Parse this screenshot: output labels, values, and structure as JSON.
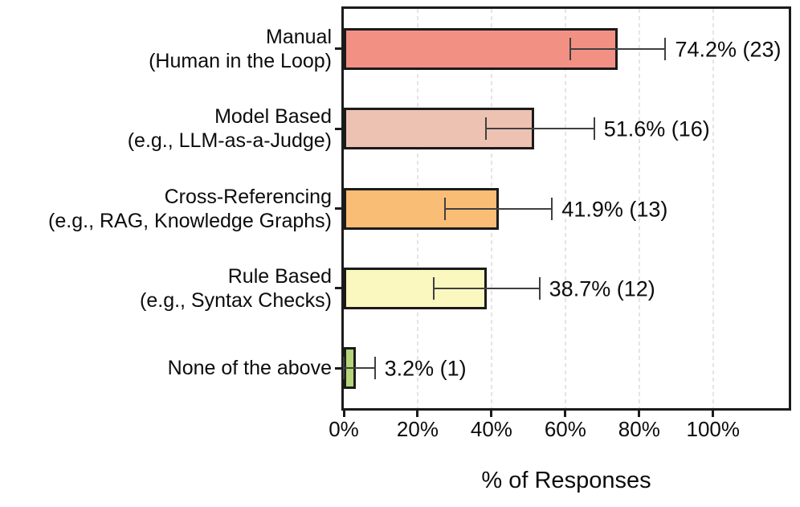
{
  "chart_data": {
    "type": "bar",
    "orientation": "horizontal",
    "title": "",
    "xlabel": "% of Responses",
    "ylabel": "",
    "xlim": [
      0,
      120.5
    ],
    "grid": "vertical-dashed",
    "legend": "none",
    "x_ticks": [
      {
        "value": 0,
        "label": "0%"
      },
      {
        "value": 20,
        "label": "20%"
      },
      {
        "value": 40,
        "label": "40%"
      },
      {
        "value": 60,
        "label": "60%"
      },
      {
        "value": 80,
        "label": "80%"
      },
      {
        "value": 100,
        "label": "100%"
      }
    ],
    "categories": [
      {
        "label_lines": [
          "Manual",
          "(Human in the Loop)"
        ],
        "value": 74.2,
        "count": 23,
        "value_label": "74.2% (23)",
        "err_low": 61.3,
        "err_high": 87.1,
        "color": "#F29084"
      },
      {
        "label_lines": [
          "Model Based",
          "(e.g., LLM-as-a-Judge)"
        ],
        "value": 51.6,
        "count": 16,
        "value_label": "51.6% (16)",
        "err_low": 38.5,
        "err_high": 67.8,
        "color": "#EEC2B2"
      },
      {
        "label_lines": [
          "Cross-Referencing",
          "(e.g., RAG, Knowledge Graphs)"
        ],
        "value": 41.9,
        "count": 13,
        "value_label": "41.9% (13)",
        "err_low": 27.4,
        "err_high": 56.4,
        "color": "#FABD75"
      },
      {
        "label_lines": [
          "Rule Based",
          "(e.g., Syntax Checks)"
        ],
        "value": 38.7,
        "count": 12,
        "value_label": "38.7% (12)",
        "err_low": 24.4,
        "err_high": 53.0,
        "color": "#FAF7BF"
      },
      {
        "label_lines": [
          "None of the above"
        ],
        "value": 3.2,
        "count": 1,
        "value_label": "3.2% (1)",
        "err_low": 0.0,
        "err_high": 8.4,
        "color": "#B4D579"
      }
    ],
    "colors": {
      "bar_edge": "#1b1b1b",
      "error_bar": "#404040",
      "grid": "#e4e4e4",
      "text": "#0c0c0c",
      "background": "#ffffff"
    }
  }
}
